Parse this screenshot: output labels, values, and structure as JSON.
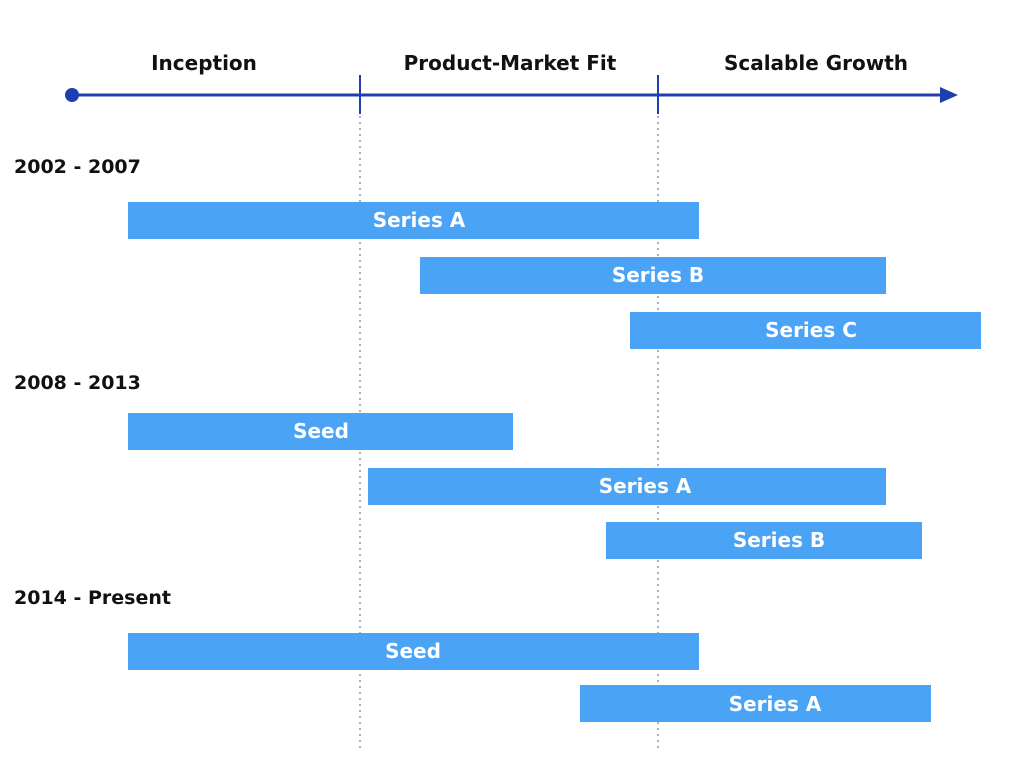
{
  "timeline": {
    "phases": [
      "Inception",
      "Product-Market Fit",
      "Scalable Growth"
    ],
    "axis_color": "#1f3fb0"
  },
  "eras": [
    {
      "label": "2002 - 2007",
      "rounds": [
        "Series A",
        "Series B",
        "Series C"
      ]
    },
    {
      "label": "2008 - 2013",
      "rounds": [
        "Seed",
        "Series A",
        "Series B"
      ]
    },
    {
      "label": "2014 - Present",
      "rounds": [
        "Seed",
        "Series A"
      ]
    }
  ],
  "colors": {
    "bar": "#4aa3f5",
    "bar_text": "#ffffff",
    "divider": "#a9b0c8",
    "text": "#111111"
  }
}
